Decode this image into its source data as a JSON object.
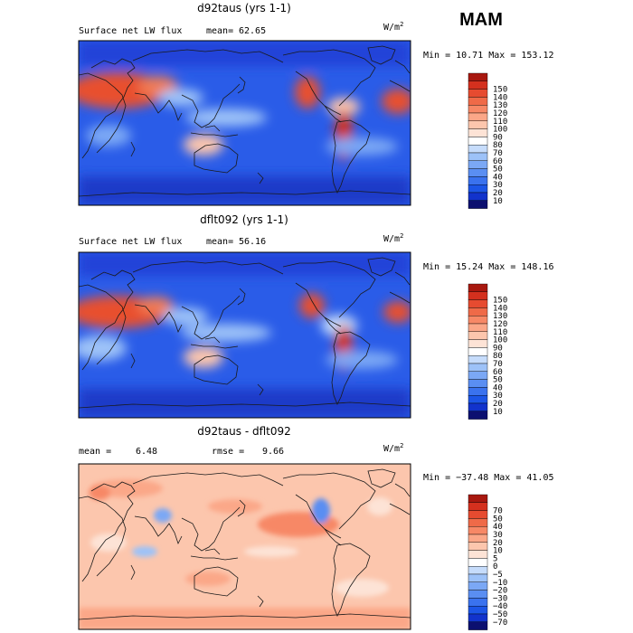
{
  "season": "MAM",
  "colors": {
    "abs_scale": [
      "#0c1070",
      "#1233cc",
      "#1c55e6",
      "#3a72ee",
      "#5a8ef2",
      "#7ba8f5",
      "#9dc2f8",
      "#c6dcfb",
      "#ffffff",
      "#fde3d6",
      "#fcc6ad",
      "#fba788",
      "#f78866",
      "#ef6a48",
      "#e64b30",
      "#d4301e",
      "#a8180f"
    ],
    "diff_scale": [
      "#0c1070",
      "#1233cc",
      "#1c55e6",
      "#3a72ee",
      "#5a8ef2",
      "#7ba8f5",
      "#9dc2f8",
      "#c6dcfb",
      "#ffffff",
      "#fde3d6",
      "#fcc6ad",
      "#fba788",
      "#f78866",
      "#ef6a48",
      "#e64b30",
      "#d4301e",
      "#a8180f"
    ]
  },
  "panels": [
    {
      "title": "d92taus (yrs 1-1)",
      "left_label": "Surface net LW flux",
      "mean_label": "mean=",
      "mean_value": "62.65",
      "rmse_label": "",
      "rmse_value": "",
      "unit": "W/m",
      "unit_sup": "2",
      "minmax": "Min =  10.71 Max = 153.12",
      "colorbar_labels": [
        "150",
        "140",
        "130",
        "120",
        "110",
        "100",
        "90",
        "80",
        "70",
        "60",
        "50",
        "40",
        "30",
        "20",
        "10"
      ]
    },
    {
      "title": "dflt092 (yrs 1-1)",
      "left_label": "Surface net LW flux",
      "mean_label": "mean=",
      "mean_value": "56.16",
      "rmse_label": "",
      "rmse_value": "",
      "unit": "W/m",
      "unit_sup": "2",
      "minmax": "Min =  15.24 Max = 148.16",
      "colorbar_labels": [
        "150",
        "140",
        "130",
        "120",
        "110",
        "100",
        "90",
        "80",
        "70",
        "60",
        "50",
        "40",
        "30",
        "20",
        "10"
      ]
    },
    {
      "title": "d92taus - dflt092",
      "left_label": "mean =",
      "mean_label": "",
      "mean_value": "6.48",
      "rmse_label": "rmse =",
      "rmse_value": "9.66",
      "unit": "W/m",
      "unit_sup": "2",
      "minmax": "Min = −37.48 Max =  41.05",
      "colorbar_labels": [
        "70",
        "50",
        "40",
        "30",
        "20",
        "10",
        "5",
        "0",
        "−5",
        "−10",
        "−20",
        "−30",
        "−40",
        "−50",
        "−70"
      ]
    }
  ]
}
